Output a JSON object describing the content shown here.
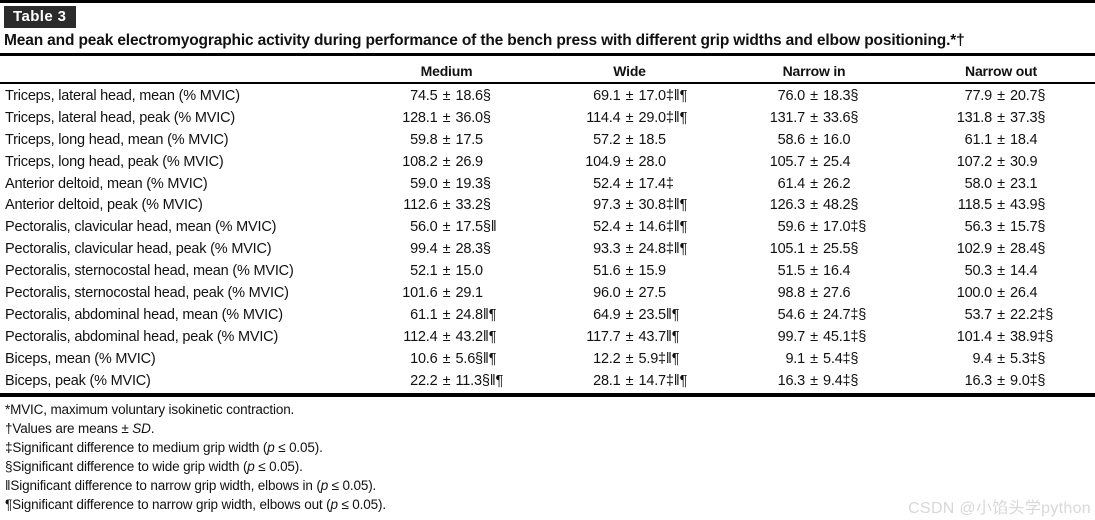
{
  "page": {
    "badge": "Table 3",
    "title": "Mean and peak electromyographic activity during performance of the bench press with different grip widths and elbow positioning.*†",
    "watermark": "CSDN @小馅头学python"
  },
  "table": {
    "pm": "±",
    "columns": [
      "Medium",
      "Wide",
      "Narrow in",
      "Narrow out"
    ],
    "rows": [
      {
        "label": "Triceps, lateral head, mean (% MVIC)",
        "cells": [
          [
            "74.5",
            "18.6",
            "§"
          ],
          [
            "69.1",
            "17.0",
            "‡‖¶"
          ],
          [
            "76.0",
            "18.3",
            "§"
          ],
          [
            "77.9",
            "20.7",
            "§"
          ]
        ]
      },
      {
        "label": "Triceps, lateral head, peak (% MVIC)",
        "cells": [
          [
            "128.1",
            "36.0",
            "§"
          ],
          [
            "114.4",
            "29.0",
            "‡‖¶"
          ],
          [
            "131.7",
            "33.6",
            "§"
          ],
          [
            "131.8",
            "37.3",
            "§"
          ]
        ]
      },
      {
        "label": "Triceps, long head, mean (% MVIC)",
        "cells": [
          [
            "59.8",
            "17.5",
            ""
          ],
          [
            "57.2",
            "18.5",
            ""
          ],
          [
            "58.6",
            "16.0",
            ""
          ],
          [
            "61.1",
            "18.4",
            ""
          ]
        ]
      },
      {
        "label": "Triceps, long head, peak (% MVIC)",
        "cells": [
          [
            "108.2",
            "26.9",
            ""
          ],
          [
            "104.9",
            "28.0",
            ""
          ],
          [
            "105.7",
            "25.4",
            ""
          ],
          [
            "107.2",
            "30.9",
            ""
          ]
        ]
      },
      {
        "label": "Anterior deltoid, mean (% MVIC)",
        "cells": [
          [
            "59.0",
            "19.3",
            "§"
          ],
          [
            "52.4",
            "17.4",
            "‡"
          ],
          [
            "61.4",
            "26.2",
            ""
          ],
          [
            "58.0",
            "23.1",
            ""
          ]
        ]
      },
      {
        "label": "Anterior deltoid, peak (% MVIC)",
        "cells": [
          [
            "112.6",
            "33.2",
            "§"
          ],
          [
            "97.3",
            "30.8",
            "‡‖¶"
          ],
          [
            "126.3",
            "48.2",
            "§"
          ],
          [
            "118.5",
            "43.9",
            "§"
          ]
        ]
      },
      {
        "label": "Pectoralis, clavicular head, mean (% MVIC)",
        "cells": [
          [
            "56.0",
            "17.5",
            "§‖"
          ],
          [
            "52.4",
            "14.6",
            "‡‖¶"
          ],
          [
            "59.6",
            "17.0",
            "‡§"
          ],
          [
            "56.3",
            "15.7",
            "§"
          ]
        ]
      },
      {
        "label": "Pectoralis, clavicular head, peak (% MVIC)",
        "cells": [
          [
            "99.4",
            "28.3",
            "§"
          ],
          [
            "93.3",
            "24.8",
            "‡‖¶"
          ],
          [
            "105.1",
            "25.5",
            "§"
          ],
          [
            "102.9",
            "28.4",
            "§"
          ]
        ]
      },
      {
        "label": "Pectoralis, sternocostal head, mean (% MVIC)",
        "cells": [
          [
            "52.1",
            "15.0",
            ""
          ],
          [
            "51.6",
            "15.9",
            ""
          ],
          [
            "51.5",
            "16.4",
            ""
          ],
          [
            "50.3",
            "14.4",
            ""
          ]
        ]
      },
      {
        "label": "Pectoralis, sternocostal head, peak (% MVIC)",
        "cells": [
          [
            "101.6",
            "29.1",
            ""
          ],
          [
            "96.0",
            "27.5",
            ""
          ],
          [
            "98.8",
            "27.6",
            ""
          ],
          [
            "100.0",
            "26.4",
            ""
          ]
        ]
      },
      {
        "label": "Pectoralis, abdominal head, mean (% MVIC)",
        "cells": [
          [
            "61.1",
            "24.8",
            "‖¶"
          ],
          [
            "64.9",
            "23.5",
            "‖¶"
          ],
          [
            "54.6",
            "24.7",
            "‡§"
          ],
          [
            "53.7",
            "22.2",
            "‡§"
          ]
        ]
      },
      {
        "label": "Pectoralis, abdominal head, peak (% MVIC)",
        "cells": [
          [
            "112.4",
            "43.2",
            "‖¶"
          ],
          [
            "117.7",
            "43.7",
            "‖¶"
          ],
          [
            "99.7",
            "45.1",
            "‡§"
          ],
          [
            "101.4",
            "38.9",
            "‡§"
          ]
        ]
      },
      {
        "label": "Biceps, mean (% MVIC)",
        "cells": [
          [
            "10.6",
            "5.6",
            "§‖¶"
          ],
          [
            "12.2",
            "5.9",
            "‡‖¶"
          ],
          [
            "9.1",
            "5.4",
            "‡§"
          ],
          [
            "9.4",
            "5.3",
            "‡§"
          ]
        ]
      },
      {
        "label": "Biceps, peak (% MVIC)",
        "cells": [
          [
            "22.2",
            "11.3",
            "§‖¶"
          ],
          [
            "28.1",
            "14.7",
            "‡‖¶"
          ],
          [
            "16.3",
            "9.4",
            "‡§"
          ],
          [
            "16.3",
            "9.0",
            "‡§"
          ]
        ]
      }
    ]
  },
  "footnotes": [
    {
      "pre": "*MVIC, maximum voluntary isokinetic contraction.",
      "italic": "",
      "post": ""
    },
    {
      "pre": "†Values are means ± ",
      "italic": "SD",
      "post": "."
    },
    {
      "pre": "‡Significant difference to medium grip width (",
      "italic": "p",
      "post": " ≤ 0.05)."
    },
    {
      "pre": "§Significant difference to wide grip width (",
      "italic": "p",
      "post": " ≤ 0.05)."
    },
    {
      "pre": "‖Significant difference to narrow grip width, elbows in (",
      "italic": "p",
      "post": " ≤ 0.05)."
    },
    {
      "pre": "¶Significant difference to narrow grip width, elbows out (",
      "italic": "p",
      "post": " ≤ 0.05)."
    }
  ]
}
